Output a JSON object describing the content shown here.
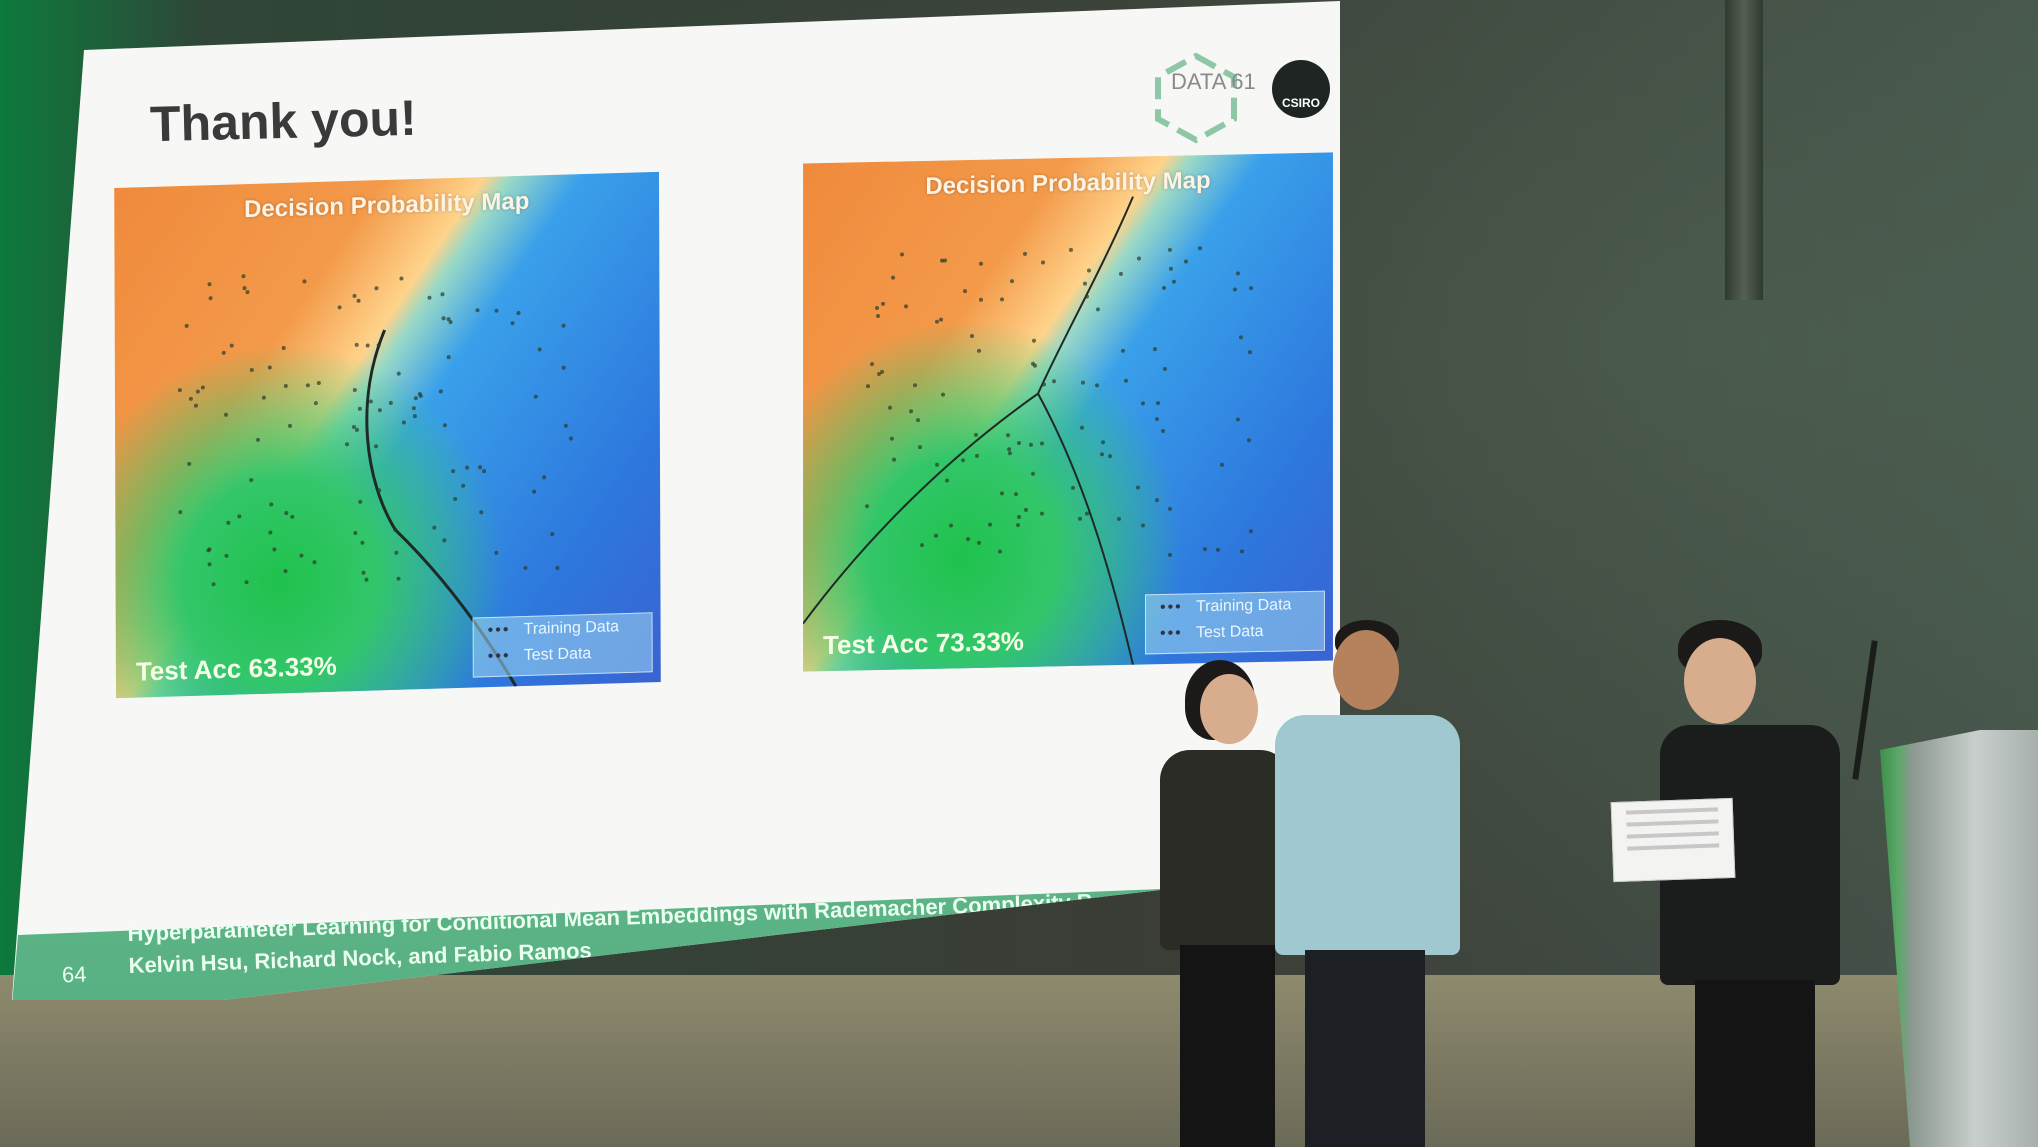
{
  "slide": {
    "title": "Thank you!",
    "page_number": "64",
    "footer_line1": "Hyperparameter Learning for Conditional Mean Embeddings with Rademacher Complexity Bou",
    "footer_line2": "Kelvin Hsu, Richard Nock, and Fabio Ramos",
    "logo_data61": "DATA 61",
    "logo_csiro": "CSIRO"
  },
  "maps": [
    {
      "title": "Decision Probability Map",
      "accuracy_label": "Test Acc 63.33%",
      "legend": [
        "Training Data",
        "Test Data"
      ]
    },
    {
      "title": "Decision Probability Map",
      "accuracy_label": "Test Acc 73.33%",
      "legend": [
        "Training Data",
        "Test Data"
      ]
    }
  ],
  "colors": {
    "footer_band": "#6bbf93",
    "orange_region": "#f08a3c",
    "blue_region": "#2d78dd",
    "green_region": "#1fc24c"
  }
}
